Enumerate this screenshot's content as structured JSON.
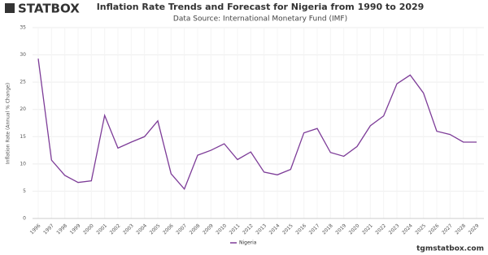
{
  "brand": {
    "logo": "STATBOX",
    "site": "tgmstatbox.com"
  },
  "chart_data": {
    "type": "line",
    "title": "Inflation Rate Trends and Forecast for Nigeria from 1990 to 2029",
    "subtitle": "Data Source: International Monetary Fund (IMF)",
    "y_label": "Inflation Rate (Annual % Change)",
    "categories": [
      "1996",
      "1997",
      "1998",
      "1999",
      "2000",
      "2001",
      "2002",
      "2003",
      "2004",
      "2005",
      "2006",
      "2007",
      "2008",
      "2009",
      "2010",
      "2011",
      "2012",
      "2013",
      "2014",
      "2015",
      "2016",
      "2017",
      "2018",
      "2019",
      "2020",
      "2021",
      "2022",
      "2023",
      "2024",
      "2025",
      "2026",
      "2027",
      "2028",
      "2029"
    ],
    "series": [
      {
        "name": "Nigeria",
        "color": "#7d3c98",
        "values": [
          29.3,
          10.7,
          7.9,
          6.6,
          6.9,
          18.9,
          12.9,
          14.0,
          15.0,
          17.9,
          8.2,
          5.4,
          11.6,
          12.5,
          13.7,
          10.8,
          12.2,
          8.5,
          8.0,
          9.0,
          15.7,
          16.5,
          12.1,
          11.4,
          13.2,
          17.0,
          18.8,
          24.7,
          26.3,
          23.0,
          16.0,
          15.4,
          14.0,
          14.0
        ]
      }
    ],
    "ylim": [
      0,
      35
    ],
    "yticks": [
      0,
      5,
      10,
      15,
      20,
      25,
      30,
      35
    ],
    "grid": true,
    "legend": "bottom"
  }
}
